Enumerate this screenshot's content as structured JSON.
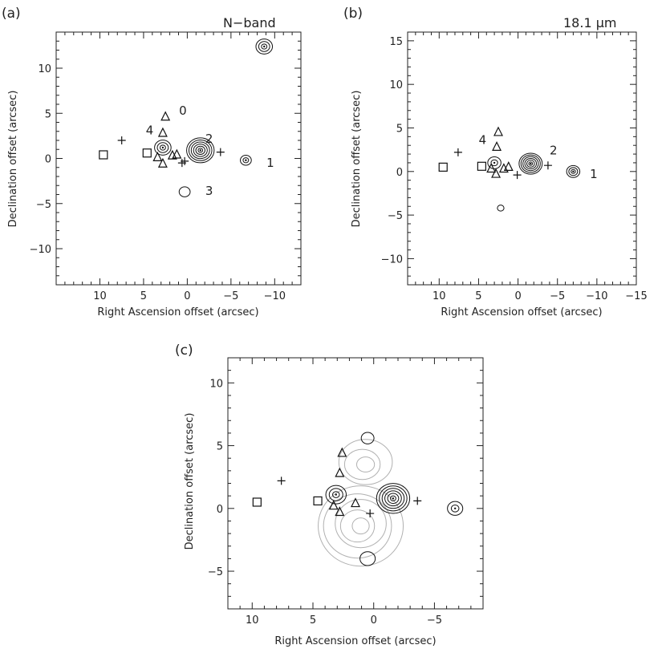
{
  "chart_data": [
    {
      "type": "scatter",
      "panel": "(a)",
      "title": "N−band",
      "xlabel": "Right Ascension offset (arcsec)",
      "ylabel": "Declination offset (arcsec)",
      "xlim": [
        15,
        -13
      ],
      "ylim": [
        -14,
        14
      ],
      "xticks": [
        10,
        5,
        0,
        -5,
        -10
      ],
      "xtick_labels": [
        "10",
        "5",
        "0",
        "−5",
        "−10"
      ],
      "yticks": [
        10,
        5,
        0,
        -5,
        -10
      ],
      "ytick_labels": [
        "10",
        "5",
        "0",
        "−5",
        "−10"
      ],
      "source_labels": [
        {
          "text": "1",
          "x": -9.5,
          "y": -0.5
        },
        {
          "text": "2",
          "x": -2.5,
          "y": 2.2
        },
        {
          "text": "3",
          "x": -2.5,
          "y": -3.6
        },
        {
          "text": "4",
          "x": 4.3,
          "y": 3.1
        },
        {
          "text": "0",
          "x": 0.5,
          "y": 5.3
        }
      ],
      "contour_sources": [
        {
          "name": "source-2",
          "x": -1.5,
          "y": 0.9,
          "levels": 6,
          "radius": 1.5
        },
        {
          "name": "source-4",
          "x": 2.8,
          "y": 1.2,
          "levels": 3,
          "radius": 0.9
        },
        {
          "name": "source-1",
          "x": -6.7,
          "y": -0.2,
          "levels": 2,
          "radius": 0.6
        },
        {
          "name": "source-3",
          "x": 0.3,
          "y": -3.7,
          "levels": 1,
          "radius": 0.6
        },
        {
          "name": "top-source",
          "x": -8.8,
          "y": 12.4,
          "levels": 3,
          "radius": 0.9
        }
      ],
      "squares": [
        {
          "x": 9.6,
          "y": 0.4
        },
        {
          "x": 4.6,
          "y": 0.6
        }
      ],
      "triangles": [
        {
          "x": 2.5,
          "y": 4.6
        },
        {
          "x": 2.8,
          "y": 2.8
        },
        {
          "x": 2.8,
          "y": -0.6
        },
        {
          "x": 3.4,
          "y": 0.1
        },
        {
          "x": 1.2,
          "y": 0.4
        },
        {
          "x": 1.7,
          "y": 0.3
        }
      ],
      "crosses": [
        {
          "x": 7.5,
          "y": 2.0
        },
        {
          "x": -3.8,
          "y": 0.7
        },
        {
          "x": 0.6,
          "y": -0.5
        },
        {
          "x": 0.3,
          "y": -0.3
        }
      ]
    },
    {
      "type": "scatter",
      "panel": "(b)",
      "title": "18.1 μm",
      "xlabel": "Right Ascension offset (arcsec)",
      "ylabel": "Declination offset (arcsec)",
      "xlim": [
        14,
        -15
      ],
      "ylim": [
        -13,
        16
      ],
      "xticks": [
        10,
        5,
        0,
        -5,
        -10,
        -15
      ],
      "xtick_labels": [
        "10",
        "5",
        "0",
        "−5",
        "−10",
        "−15"
      ],
      "yticks": [
        15,
        10,
        5,
        0,
        -5,
        -10
      ],
      "ytick_labels": [
        "15",
        "10",
        "5",
        "0",
        "−5",
        "−10"
      ],
      "source_labels": [
        {
          "text": "1",
          "x": -9.6,
          "y": -0.3
        },
        {
          "text": "2",
          "x": -4.5,
          "y": 2.4
        },
        {
          "text": "4",
          "x": 4.5,
          "y": 3.6
        }
      ],
      "contour_sources": [
        {
          "name": "source-2",
          "x": -1.6,
          "y": 0.9,
          "levels": 6,
          "radius": 1.4
        },
        {
          "name": "source-4",
          "x": 3.0,
          "y": 1.0,
          "levels": 2,
          "radius": 0.8
        },
        {
          "name": "source-1",
          "x": -7.0,
          "y": 0.0,
          "levels": 3,
          "radius": 0.8
        },
        {
          "name": "faint-south",
          "x": 2.2,
          "y": -4.2,
          "levels": 1,
          "radius": 0.4
        }
      ],
      "squares": [
        {
          "x": 9.5,
          "y": 0.5
        },
        {
          "x": 4.6,
          "y": 0.6
        }
      ],
      "triangles": [
        {
          "x": 2.5,
          "y": 4.5
        },
        {
          "x": 2.7,
          "y": 2.8
        },
        {
          "x": 3.4,
          "y": 0.3
        },
        {
          "x": 2.8,
          "y": -0.3
        },
        {
          "x": 1.2,
          "y": 0.5
        },
        {
          "x": 1.8,
          "y": 0.3
        }
      ],
      "crosses": [
        {
          "x": 7.6,
          "y": 2.2
        },
        {
          "x": -3.8,
          "y": 0.7
        },
        {
          "x": 0.1,
          "y": -0.4
        }
      ]
    },
    {
      "type": "scatter",
      "panel": "(c)",
      "title": "",
      "xlabel": "Right Ascension offset (arcsec)",
      "ylabel": "Declination offset (arcsec)",
      "xlim": [
        12,
        -9
      ],
      "ylim": [
        -8,
        12
      ],
      "xticks": [
        10,
        5,
        0,
        -5
      ],
      "xtick_labels": [
        "10",
        "5",
        "0",
        "−5"
      ],
      "yticks": [
        10,
        5,
        0,
        -5
      ],
      "ytick_labels": [
        "10",
        "5",
        "0",
        "−5"
      ],
      "contour_sources": [
        {
          "name": "source-2",
          "x": -1.6,
          "y": 0.8,
          "levels": 6,
          "radius": 1.3
        },
        {
          "name": "source-4",
          "x": 3.1,
          "y": 1.1,
          "levels": 3,
          "radius": 0.8
        },
        {
          "name": "source-1",
          "x": -6.7,
          "y": 0.0,
          "levels": 2,
          "radius": 0.6
        },
        {
          "name": "north-blob",
          "x": 0.5,
          "y": 5.6,
          "levels": 1,
          "radius": 0.5
        },
        {
          "name": "south-blob",
          "x": 0.5,
          "y": -4.0,
          "levels": 1,
          "radius": 0.6
        }
      ],
      "grey_contours": [
        {
          "name": "gas-main",
          "x": 1.2,
          "y": -1.3,
          "rx": 3.5,
          "ry": 3.2,
          "levels": 5
        },
        {
          "name": "gas-north",
          "x": 0.8,
          "y": 3.6,
          "rx": 2.2,
          "ry": 1.8,
          "levels": 3
        }
      ],
      "squares": [
        {
          "x": 9.6,
          "y": 0.5
        },
        {
          "x": 4.6,
          "y": 0.6
        }
      ],
      "triangles": [
        {
          "x": 2.6,
          "y": 4.4
        },
        {
          "x": 2.8,
          "y": 2.8
        },
        {
          "x": 3.3,
          "y": 0.2
        },
        {
          "x": 2.8,
          "y": -0.3
        },
        {
          "x": 1.5,
          "y": 0.4
        }
      ],
      "crosses": [
        {
          "x": 7.6,
          "y": 2.2
        },
        {
          "x": -3.6,
          "y": 0.6
        },
        {
          "x": 0.3,
          "y": -0.4
        }
      ]
    }
  ]
}
